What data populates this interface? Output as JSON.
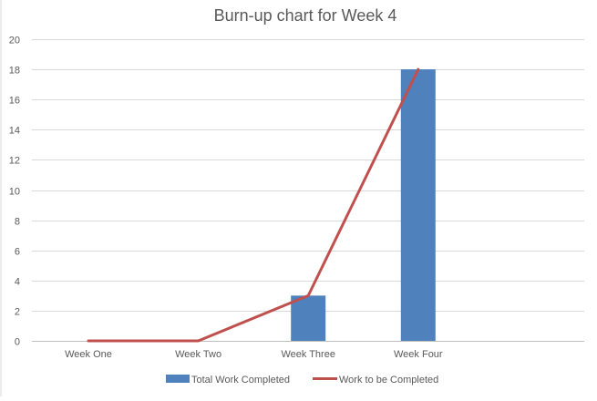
{
  "chart_data": {
    "type": "bar",
    "title": "Burn-up chart for Week 4",
    "xlabel": "",
    "ylabel": "",
    "categories": [
      "Week One",
      "Week Two",
      "Week Three",
      "Week Four"
    ],
    "ylim": [
      0,
      20
    ],
    "yticks": [
      0,
      2,
      4,
      6,
      8,
      10,
      12,
      14,
      16,
      18,
      20
    ],
    "grid": true,
    "legend_position": "bottom",
    "series": [
      {
        "name": "Total Work Completed",
        "kind": "bar",
        "color": "#4f81bd",
        "values": [
          0,
          0,
          3,
          18
        ]
      },
      {
        "name": "Work to be Completed",
        "kind": "line",
        "color": "#c0504d",
        "values": [
          0,
          0,
          3,
          18
        ]
      }
    ]
  }
}
